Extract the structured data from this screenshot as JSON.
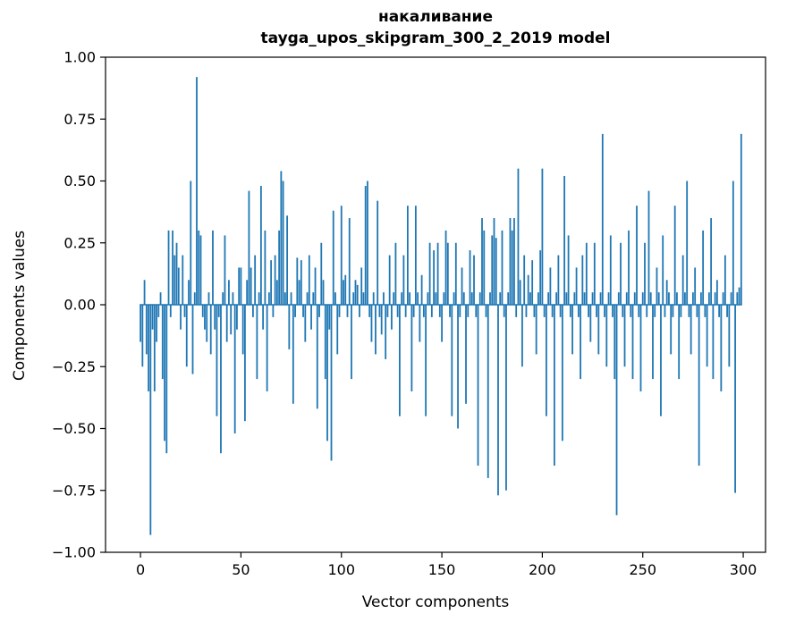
{
  "title_line1": "накаливание",
  "title_line2": "tayga_upos_skipgram_300_2_2019 model",
  "chart_data": {
    "type": "bar",
    "title": "накаливание\ntayga_upos_skipgram_300_2_2019 model",
    "xlabel": "Vector components",
    "ylabel": "Components values",
    "x_is_index": true,
    "n_bars": 300,
    "xlim": [
      -17.4,
      311.1
    ],
    "ylim": [
      -1.0,
      1.0
    ],
    "xticks": [
      0,
      50,
      100,
      150,
      200,
      250,
      300
    ],
    "yticks": [
      -1.0,
      -0.75,
      -0.5,
      -0.25,
      0.0,
      0.25,
      0.5,
      0.75,
      1.0
    ],
    "ytick_labels": [
      "−1.00",
      "−0.75",
      "−0.50",
      "−0.25",
      "0.00",
      "0.25",
      "0.50",
      "0.75",
      "1.00"
    ],
    "bar_color": "#1f77b4",
    "bar_width": 0.8,
    "grid": false,
    "legend": "none",
    "values": [
      -0.15,
      -0.25,
      0.1,
      -0.2,
      -0.35,
      -0.93,
      -0.1,
      -0.35,
      -0.15,
      -0.05,
      0.05,
      -0.3,
      -0.55,
      -0.6,
      0.3,
      -0.05,
      0.3,
      0.2,
      0.25,
      0.15,
      -0.1,
      0.2,
      -0.05,
      -0.25,
      0.1,
      0.5,
      -0.28,
      0.05,
      0.92,
      0.3,
      0.28,
      -0.05,
      -0.1,
      -0.15,
      0.05,
      -0.2,
      0.3,
      -0.1,
      -0.45,
      -0.05,
      -0.6,
      0.05,
      0.28,
      -0.15,
      0.1,
      -0.12,
      0.05,
      -0.52,
      -0.1,
      0.15,
      0.15,
      -0.2,
      -0.47,
      0.1,
      0.46,
      0.15,
      -0.05,
      0.2,
      -0.3,
      0.05,
      0.48,
      -0.1,
      0.3,
      -0.35,
      0.05,
      0.18,
      -0.05,
      0.2,
      0.1,
      0.3,
      0.54,
      0.5,
      0.05,
      0.36,
      -0.18,
      0.05,
      -0.4,
      -0.05,
      0.19,
      0.1,
      0.18,
      -0.05,
      -0.15,
      0.05,
      0.2,
      -0.1,
      0.05,
      0.15,
      -0.42,
      -0.05,
      0.25,
      0.1,
      -0.3,
      -0.55,
      -0.1,
      -0.63,
      0.38,
      0.05,
      -0.2,
      -0.05,
      0.4,
      0.1,
      0.12,
      -0.05,
      0.35,
      -0.3,
      0.05,
      0.1,
      0.08,
      -0.05,
      0.15,
      0.05,
      0.48,
      0.5,
      -0.05,
      -0.15,
      0.05,
      -0.2,
      0.42,
      -0.05,
      -0.12,
      0.05,
      -0.22,
      -0.05,
      0.2,
      -0.1,
      0.05,
      0.25,
      -0.05,
      -0.45,
      0.05,
      0.2,
      -0.05,
      0.4,
      0.05,
      -0.35,
      -0.05,
      0.4,
      0.05,
      -0.15,
      0.12,
      -0.05,
      -0.45,
      0.05,
      0.25,
      -0.05,
      0.22,
      0.05,
      0.25,
      -0.05,
      -0.15,
      0.05,
      0.3,
      0.25,
      -0.05,
      -0.45,
      0.05,
      0.25,
      -0.5,
      -0.05,
      0.15,
      0.05,
      -0.4,
      -0.05,
      0.22,
      0.05,
      0.2,
      -0.05,
      -0.65,
      0.05,
      0.35,
      0.3,
      -0.05,
      -0.7,
      0.05,
      0.28,
      0.35,
      0.27,
      -0.77,
      0.05,
      0.3,
      -0.05,
      -0.75,
      0.05,
      0.35,
      0.3,
      0.35,
      -0.05,
      0.55,
      0.1,
      -0.25,
      0.2,
      -0.05,
      0.12,
      0.05,
      0.18,
      -0.05,
      -0.2,
      0.05,
      0.22,
      0.55,
      -0.05,
      -0.45,
      0.05,
      0.15,
      -0.05,
      -0.65,
      0.05,
      0.2,
      -0.05,
      -0.55,
      0.52,
      0.05,
      0.28,
      -0.05,
      -0.2,
      0.05,
      0.15,
      -0.05,
      -0.3,
      0.2,
      0.05,
      0.25,
      -0.05,
      -0.15,
      0.05,
      0.25,
      -0.05,
      -0.2,
      0.05,
      0.69,
      -0.05,
      -0.25,
      0.05,
      0.28,
      -0.05,
      -0.3,
      -0.85,
      0.05,
      0.25,
      -0.05,
      -0.25,
      0.05,
      0.3,
      -0.05,
      -0.3,
      0.05,
      0.4,
      -0.05,
      -0.35,
      0.05,
      0.25,
      -0.05,
      0.46,
      0.05,
      -0.3,
      -0.05,
      0.15,
      0.05,
      -0.45,
      0.28,
      -0.05,
      0.1,
      0.05,
      -0.2,
      -0.05,
      0.4,
      0.05,
      -0.3,
      -0.05,
      0.2,
      0.05,
      0.5,
      -0.05,
      -0.2,
      0.05,
      0.15,
      -0.05,
      -0.65,
      0.05,
      0.3,
      -0.05,
      -0.25,
      0.05,
      0.35,
      -0.3,
      0.05,
      0.1,
      -0.05,
      -0.35,
      0.05,
      0.2,
      -0.05,
      -0.25,
      0.05,
      0.5,
      -0.76,
      0.05,
      0.07,
      0.69
    ]
  }
}
